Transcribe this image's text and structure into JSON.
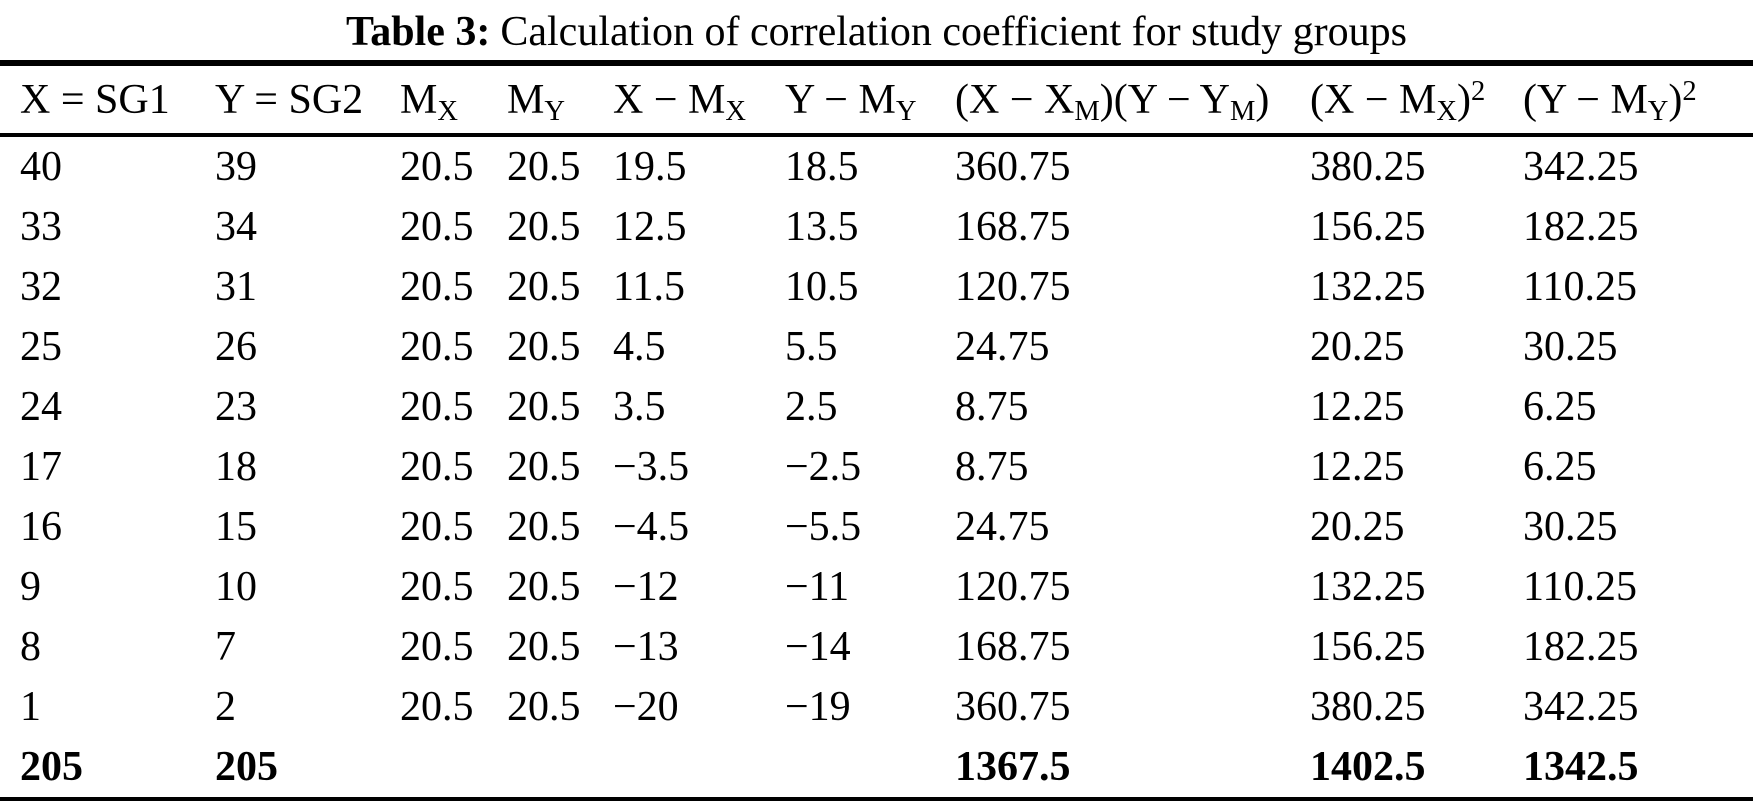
{
  "title": {
    "label": "Table 3:",
    "text": "Calculation of correlation coefficient for study groups"
  },
  "table": {
    "headers": [
      "X = SG1",
      "Y = SG2",
      "M_X",
      "M_Y",
      "X − M_X",
      "Y − M_Y",
      "(X − X_M)(Y − Y_M)",
      "(X − M_X)^2",
      "(Y − M_Y)^2"
    ],
    "headers_html": [
      "X = SG1",
      "Y = SG2",
      "M<sub>X</sub>",
      "M<sub>Y</sub>",
      "X − M<sub>X</sub>",
      "Y − M<sub>Y</sub>",
      "(X − X<sub>M</sub>)(Y − Y<sub>M</sub>)",
      "(X − M<sub>X</sub>)<sup>2</sup>",
      "(Y − M<sub>Y</sub>)<sup>2</sup>"
    ],
    "rows": [
      [
        "40",
        "39",
        "20.5",
        "20.5",
        "19.5",
        "18.5",
        "360.75",
        "380.25",
        "342.25"
      ],
      [
        "33",
        "34",
        "20.5",
        "20.5",
        "12.5",
        "13.5",
        "168.75",
        "156.25",
        "182.25"
      ],
      [
        "32",
        "31",
        "20.5",
        "20.5",
        "11.5",
        "10.5",
        "120.75",
        "132.25",
        "110.25"
      ],
      [
        "25",
        "26",
        "20.5",
        "20.5",
        "4.5",
        "5.5",
        "24.75",
        "20.25",
        "30.25"
      ],
      [
        "24",
        "23",
        "20.5",
        "20.5",
        "3.5",
        "2.5",
        "8.75",
        "12.25",
        "6.25"
      ],
      [
        "17",
        "18",
        "20.5",
        "20.5",
        "−3.5",
        "−2.5",
        "8.75",
        "12.25",
        "6.25"
      ],
      [
        "16",
        "15",
        "20.5",
        "20.5",
        "−4.5",
        "−5.5",
        "24.75",
        "20.25",
        "30.25"
      ],
      [
        "9",
        "10",
        "20.5",
        "20.5",
        "−12",
        "−11",
        "120.75",
        "132.25",
        "110.25"
      ],
      [
        "8",
        "7",
        "20.5",
        "20.5",
        "−13",
        "−14",
        "168.75",
        "156.25",
        "182.25"
      ],
      [
        "1",
        "2",
        "20.5",
        "20.5",
        "−20",
        "−19",
        "360.75",
        "380.25",
        "342.25"
      ]
    ],
    "totals": [
      "205",
      "205",
      "",
      "",
      "",
      "",
      "1367.5",
      "1402.5",
      "1342.5"
    ]
  },
  "colors": {
    "background": "#ffffff",
    "text": "#000000",
    "rule": "#000000"
  }
}
